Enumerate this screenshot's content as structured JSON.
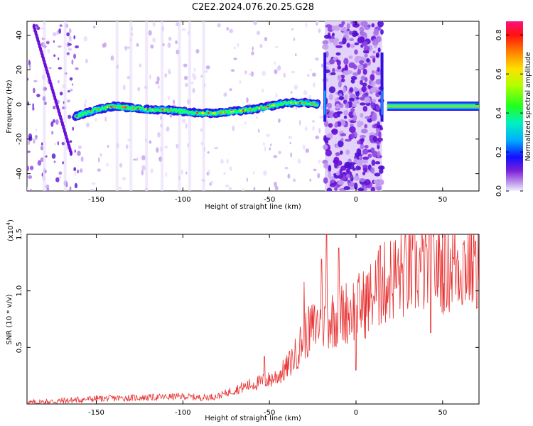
{
  "title": "C2E2.2024.076.20.25.G28",
  "chart_data": [
    {
      "type": "heatmap",
      "xlabel": "Height of straight line (km)",
      "ylabel": "Frequency (Hz)",
      "xlim": [
        -190,
        71
      ],
      "ylim": [
        -50,
        48
      ],
      "xticks": [
        -150,
        -100,
        -50,
        0,
        50
      ],
      "xtick_labels": [
        "-150",
        "-100",
        "-50",
        "0",
        "50"
      ],
      "yticks": [
        -40,
        -20,
        0,
        20,
        40
      ],
      "ytick_labels": [
        "-40",
        "-20",
        "0",
        "20",
        "40"
      ],
      "colorbar": {
        "label": "Normalized spectral amplitude",
        "range": [
          0,
          0.87
        ],
        "ticks": [
          0.0,
          0.2,
          0.4,
          0.6,
          0.8
        ],
        "tick_labels": [
          "0.0",
          "0.2",
          "0.4",
          "0.6",
          "0.8"
        ]
      },
      "ridge": {
        "x": [
          -162,
          -150,
          -140,
          -130,
          -120,
          -110,
          -100,
          -90,
          -80,
          -70,
          -60,
          -50,
          -40,
          -30,
          -22
        ],
        "y": [
          -7,
          -3,
          -1,
          -2,
          -3,
          -3,
          -4,
          -5,
          -5,
          -4,
          -3,
          -1,
          1,
          1,
          0
        ]
      },
      "spike_at_x": [
        -18,
        15
      ],
      "tone": {
        "x": [
          18,
          71
        ],
        "y": -1
      }
    },
    {
      "type": "line",
      "xlabel": "Height of straight line (km)",
      "ylabel": "SNR (10 * v/v)",
      "yscale_label": "(x10",
      "yscale_exp": "4",
      "yscale_close": ")",
      "xlim": [
        -190,
        71
      ],
      "ylim": [
        0,
        1.5
      ],
      "xticks": [
        -150,
        -100,
        -50,
        0,
        50
      ],
      "xtick_labels": [
        "-150",
        "-100",
        "-50",
        "0",
        "50"
      ],
      "yticks": [
        0.5,
        1.0,
        1.5
      ],
      "ytick_labels": [
        "0.5",
        "1.0",
        "1.5"
      ],
      "color": "#e83030",
      "trend": {
        "x": [
          -190,
          -170,
          -150,
          -120,
          -100,
          -90,
          -80,
          -70,
          -60,
          -50,
          -45,
          -40,
          -35,
          -30,
          -25,
          -20,
          -15,
          -10,
          -5,
          0,
          5,
          10,
          15,
          20,
          30,
          40,
          50,
          60,
          71
        ],
        "y": [
          0.01,
          0.03,
          0.05,
          0.06,
          0.07,
          0.06,
          0.07,
          0.13,
          0.18,
          0.22,
          0.26,
          0.33,
          0.45,
          0.62,
          0.7,
          0.75,
          0.78,
          0.8,
          0.85,
          0.88,
          0.92,
          1.0,
          1.08,
          1.15,
          1.2,
          1.25,
          1.27,
          1.29,
          1.3
        ]
      },
      "peaks": [
        {
          "x": -53,
          "y": 0.42
        },
        {
          "x": -30,
          "y": 1.08
        },
        {
          "x": -20,
          "y": 1.28
        },
        {
          "x": -17,
          "y": 1.5
        },
        {
          "x": -10,
          "y": 1.38
        },
        {
          "x": 0,
          "y": 0.3
        },
        {
          "x": 14,
          "y": 1.4
        },
        {
          "x": 43,
          "y": 0.63
        },
        {
          "x": 69,
          "y": 1.44
        },
        {
          "x": 70,
          "y": 0.85
        }
      ]
    }
  ]
}
